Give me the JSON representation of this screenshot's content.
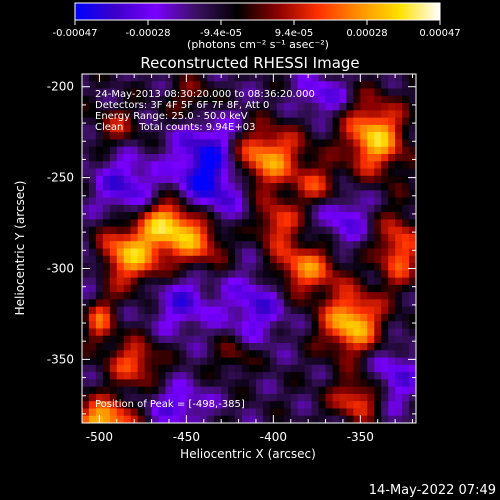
{
  "chart_data": {
    "type": "heatmap",
    "title": "Reconstructed RHESSI Image",
    "xlabel": "Heliocentric X (arcsec)",
    "ylabel": "Heliocentric Y (arcsec)",
    "xlim": [
      -510,
      -318
    ],
    "ylim": [
      -385,
      -193
    ],
    "xticks": [
      -500,
      -450,
      -400,
      -350
    ],
    "yticks": [
      -200,
      -250,
      -300,
      -350
    ],
    "colorbar": {
      "ticks": [
        "-0.00047",
        "-0.00028",
        "-9.4e-05",
        "9.4e-05",
        "0.00028",
        "0.00047"
      ],
      "unit_label": "(photons cm⁻² s⁻¹ asec⁻²)",
      "range": [
        -0.00047,
        0.00047
      ],
      "colors": [
        "#0000ff",
        "#3c00c8",
        "#7a00ff",
        "#3a1060",
        "#000000",
        "#8a0000",
        "#ff3000",
        "#ff9000",
        "#ffe000",
        "#ffffff"
      ]
    },
    "annotations": [
      "24-May-2013 08:30:20.000 to 08:36:20.000",
      "Detectors: 3F 4F 5F 6F 7F 8F, Att 0",
      "Energy Range: 25.0 - 50.0 keV",
      "Clean     Total counts: 9.94E+03"
    ],
    "peak_label": "Position of Peak = [-498,-385]",
    "peak": {
      "x": -498,
      "y": -385
    },
    "bright_regions": [
      {
        "x": -482,
        "y": -292,
        "sx": 14,
        "sy": 12,
        "v": 0.00042
      },
      {
        "x": -444,
        "y": -283,
        "sx": 12,
        "sy": 12,
        "v": 0.0004
      },
      {
        "x": -462,
        "y": -274,
        "sx": 10,
        "sy": 9,
        "v": 0.00036
      },
      {
        "x": -406,
        "y": -239,
        "sx": 16,
        "sy": 12,
        "v": 0.00042
      },
      {
        "x": -382,
        "y": -300,
        "sx": 14,
        "sy": 10,
        "v": 0.00035
      },
      {
        "x": -398,
        "y": -275,
        "sx": 9,
        "sy": 9,
        "v": 0.00028
      },
      {
        "x": -342,
        "y": -228,
        "sx": 12,
        "sy": 14,
        "v": 0.00045
      },
      {
        "x": -355,
        "y": -330,
        "sx": 12,
        "sy": 12,
        "v": 0.00046
      },
      {
        "x": -328,
        "y": -290,
        "sx": 9,
        "sy": 14,
        "v": 0.00032
      },
      {
        "x": -498,
        "y": -385,
        "sx": 12,
        "sy": 9,
        "v": 0.00047
      },
      {
        "x": -480,
        "y": -352,
        "sx": 10,
        "sy": 9,
        "v": 0.0003
      },
      {
        "x": -500,
        "y": -328,
        "sx": 6,
        "sy": 10,
        "v": 0.00028
      },
      {
        "x": -422,
        "y": -348,
        "sx": 8,
        "sy": 7,
        "v": 0.00015
      },
      {
        "x": -445,
        "y": -208,
        "sx": 10,
        "sy": 9,
        "v": 0.00022
      },
      {
        "x": -490,
        "y": -222,
        "sx": 9,
        "sy": 8,
        "v": 0.00018
      },
      {
        "x": -372,
        "y": -255,
        "sx": 10,
        "sy": 8,
        "v": 0.00025
      },
      {
        "x": -352,
        "y": -372,
        "sx": 10,
        "sy": 8,
        "v": 0.0003
      }
    ],
    "dark_regions": [
      {
        "x": -436,
        "y": -246,
        "sx": 14,
        "sy": 22,
        "v": -0.0004
      },
      {
        "x": -452,
        "y": -318,
        "sx": 12,
        "sy": 12,
        "v": -0.00022
      },
      {
        "x": -485,
        "y": -255,
        "sx": 12,
        "sy": 12,
        "v": -0.00024
      },
      {
        "x": -410,
        "y": -320,
        "sx": 12,
        "sy": 14,
        "v": -0.00022
      },
      {
        "x": -360,
        "y": -270,
        "sx": 10,
        "sy": 14,
        "v": -0.0002
      },
      {
        "x": -330,
        "y": -360,
        "sx": 10,
        "sy": 12,
        "v": -0.0002
      },
      {
        "x": -455,
        "y": -375,
        "sx": 12,
        "sy": 8,
        "v": -0.0002
      },
      {
        "x": -372,
        "y": -205,
        "sx": 10,
        "sy": 8,
        "v": -0.0002
      },
      {
        "x": -505,
        "y": -300,
        "sx": 6,
        "sy": 12,
        "v": -0.00015
      }
    ]
  },
  "timestamp": "14-May-2022 07:49"
}
